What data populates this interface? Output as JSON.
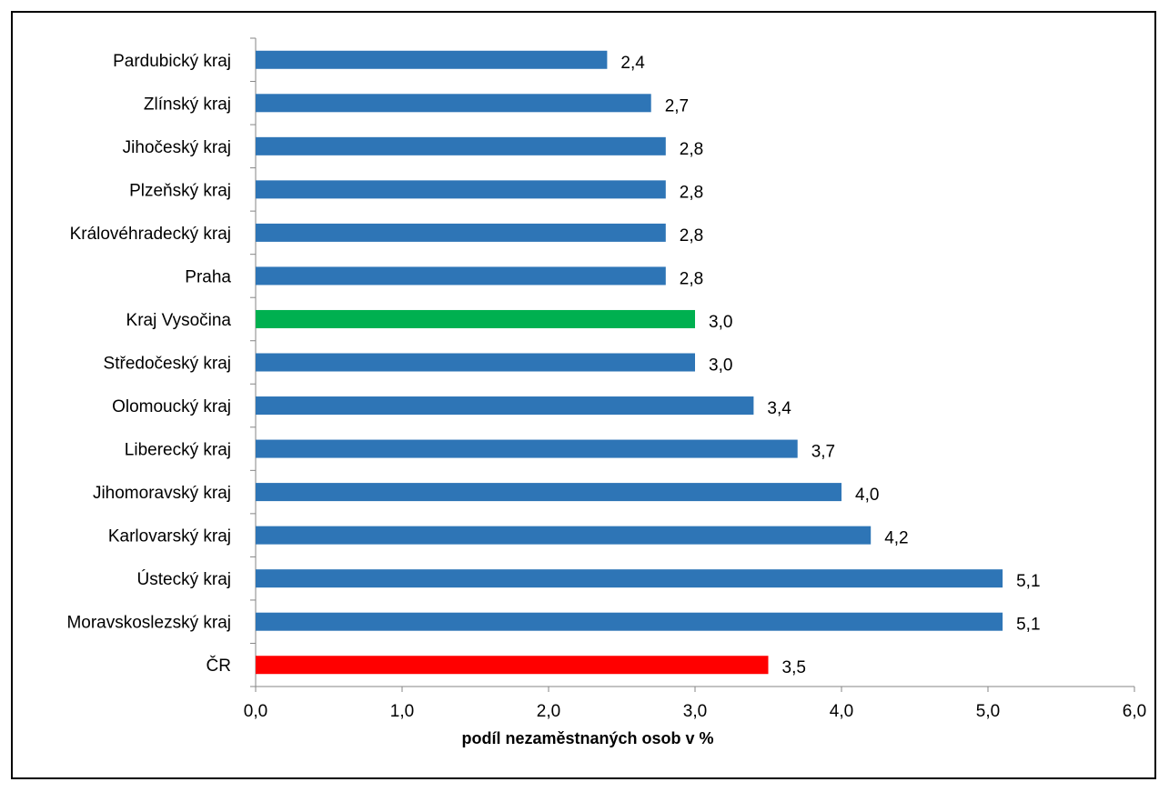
{
  "chart_data": {
    "type": "bar",
    "orientation": "horizontal",
    "categories": [
      "Pardubický kraj",
      "Zlínský kraj",
      "Jihočeský kraj",
      "Plzeňský kraj",
      "Královéhradecký kraj",
      "Praha",
      "Kraj Vysočina",
      "Středočeský kraj",
      "Olomoucký kraj",
      "Liberecký kraj",
      "Jihomoravský kraj",
      "Karlovarský kraj",
      "Ústecký kraj",
      "Moravskoslezský kraj",
      "ČR"
    ],
    "values": [
      2.4,
      2.7,
      2.8,
      2.8,
      2.8,
      2.8,
      3.0,
      3.0,
      3.4,
      3.7,
      4.0,
      4.2,
      5.1,
      5.1,
      3.5
    ],
    "value_labels": [
      "2,4",
      "2,7",
      "2,8",
      "2,8",
      "2,8",
      "2,8",
      "3,0",
      "3,0",
      "3,4",
      "3,7",
      "4,0",
      "4,2",
      "5,1",
      "5,1",
      "3,5"
    ],
    "bar_colors": [
      "#2E75B6",
      "#2E75B6",
      "#2E75B6",
      "#2E75B6",
      "#2E75B6",
      "#2E75B6",
      "#00B050",
      "#2E75B6",
      "#2E75B6",
      "#2E75B6",
      "#2E75B6",
      "#2E75B6",
      "#2E75B6",
      "#2E75B6",
      "#FF0000"
    ],
    "xlabel": "podíl nezaměstnaných osob v %",
    "ylabel": "",
    "xlim": [
      0,
      6
    ],
    "xticks": [
      0,
      1,
      2,
      3,
      4,
      5,
      6
    ],
    "xtick_labels": [
      "0,0",
      "1,0",
      "2,0",
      "3,0",
      "4,0",
      "5,0",
      "6,0"
    ],
    "grid": false,
    "legend": "none"
  }
}
